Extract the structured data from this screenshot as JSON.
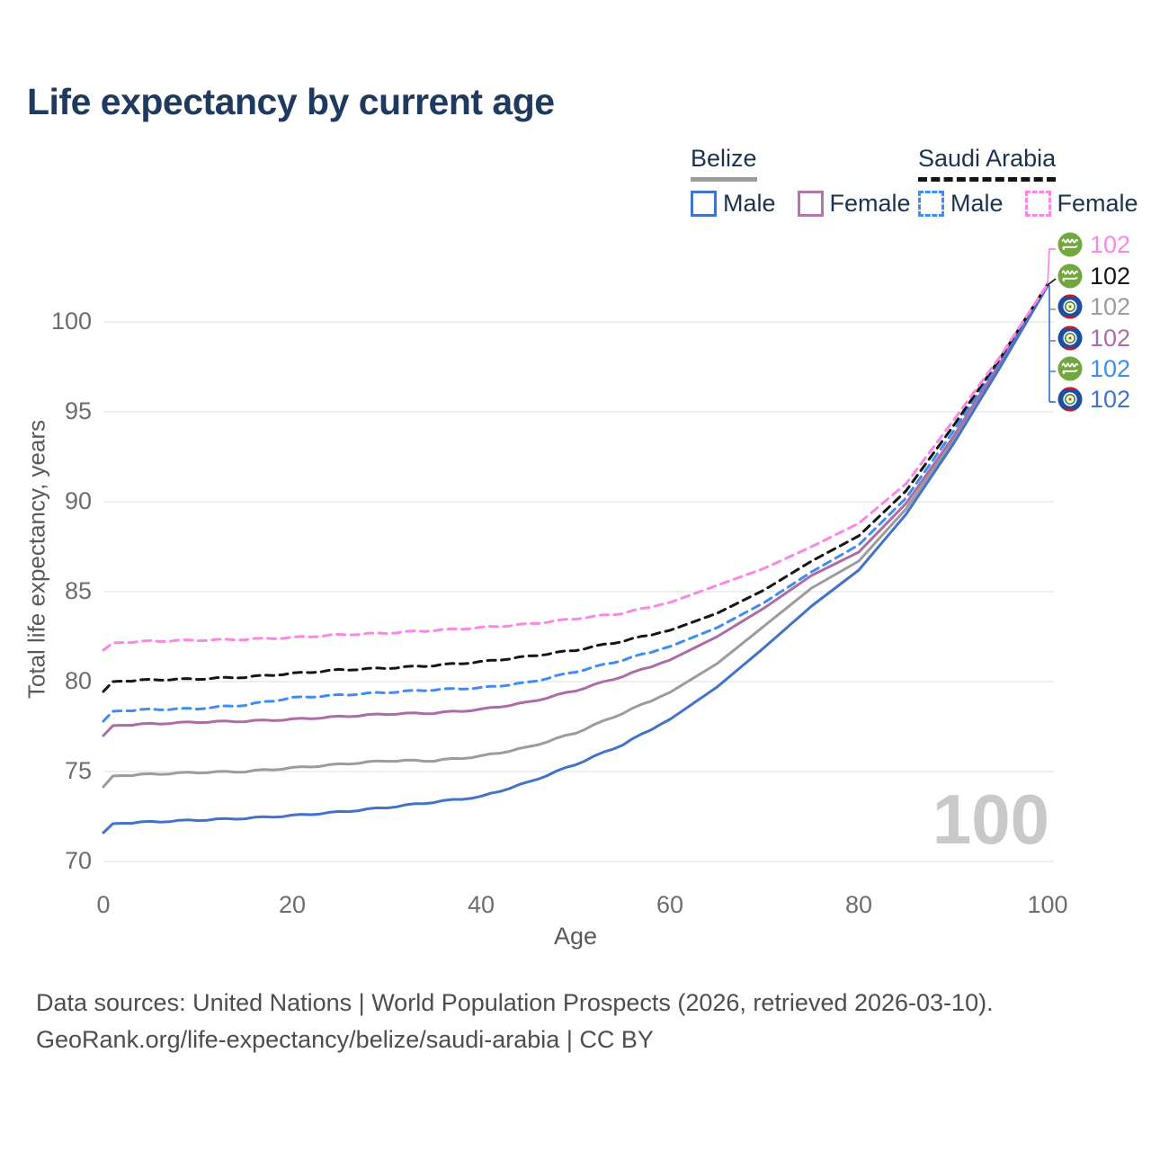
{
  "header": {
    "title": "Life expectancy by current age"
  },
  "legend": {
    "groups": [
      {
        "country": "Belize",
        "underline_style": "solid",
        "underline_color": "#9c9c9c",
        "items": [
          {
            "label": "Male",
            "color": "#4273c8",
            "dashed": false
          },
          {
            "label": "Female",
            "color": "#b474ac",
            "dashed": false
          }
        ]
      },
      {
        "country": "Saudi Arabia",
        "underline_style": "dashed",
        "underline_color": "#141414",
        "items": [
          {
            "label": "Male",
            "color": "#3f8df2",
            "dashed": true
          },
          {
            "label": "Female",
            "color": "#fb87e4",
            "dashed": true
          }
        ]
      }
    ]
  },
  "chart_data": {
    "type": "line",
    "title": "Life expectancy by current age",
    "xlabel": "Age",
    "ylabel": "Total life expectancy, years",
    "xlim": [
      0,
      100
    ],
    "ylim": [
      70,
      102.5
    ],
    "x_ticks": [
      0,
      20,
      40,
      60,
      80,
      100
    ],
    "y_ticks": [
      70,
      75,
      80,
      85,
      90,
      95,
      100
    ],
    "grid": "horizontal",
    "legend_position": "top-right",
    "series": [
      {
        "name": "Belize",
        "country": "belize",
        "sex": "all",
        "color": "#9c9c9c",
        "dashed": false,
        "points": [
          [
            0,
            74.15
          ],
          [
            1,
            74.75
          ],
          [
            5,
            74.85
          ],
          [
            10,
            74.95
          ],
          [
            15,
            75.0
          ],
          [
            20,
            75.2
          ],
          [
            25,
            75.4
          ],
          [
            30,
            75.6
          ],
          [
            35,
            75.6
          ],
          [
            40,
            75.85
          ],
          [
            45,
            76.35
          ],
          [
            50,
            77.15
          ],
          [
            55,
            78.25
          ],
          [
            60,
            79.4
          ],
          [
            65,
            81.0
          ],
          [
            70,
            83.1
          ],
          [
            75,
            85.2
          ],
          [
            80,
            86.7
          ],
          [
            85,
            89.6
          ],
          [
            90,
            93.4
          ],
          [
            95,
            97.6
          ],
          [
            100,
            102.0
          ]
        ]
      },
      {
        "name": "Belize Female",
        "country": "belize",
        "sex": "female",
        "color": "#ad6ca6",
        "dashed": false,
        "points": [
          [
            0,
            77.0
          ],
          [
            1,
            77.55
          ],
          [
            5,
            77.65
          ],
          [
            10,
            77.75
          ],
          [
            15,
            77.8
          ],
          [
            20,
            77.9
          ],
          [
            25,
            78.05
          ],
          [
            30,
            78.2
          ],
          [
            35,
            78.25
          ],
          [
            40,
            78.45
          ],
          [
            45,
            78.85
          ],
          [
            50,
            79.5
          ],
          [
            55,
            80.3
          ],
          [
            60,
            81.2
          ],
          [
            65,
            82.5
          ],
          [
            70,
            84.1
          ],
          [
            75,
            85.9
          ],
          [
            80,
            87.2
          ],
          [
            85,
            89.9
          ],
          [
            90,
            93.6
          ],
          [
            95,
            97.75
          ],
          [
            100,
            102.05
          ]
        ]
      },
      {
        "name": "Belize Male",
        "country": "belize",
        "sex": "male",
        "color": "#4273c8",
        "dashed": false,
        "points": [
          [
            0,
            71.6
          ],
          [
            1,
            72.1
          ],
          [
            5,
            72.2
          ],
          [
            10,
            72.3
          ],
          [
            15,
            72.4
          ],
          [
            20,
            72.55
          ],
          [
            25,
            72.75
          ],
          [
            30,
            73.0
          ],
          [
            35,
            73.3
          ],
          [
            40,
            73.6
          ],
          [
            45,
            74.4
          ],
          [
            50,
            75.4
          ],
          [
            55,
            76.5
          ],
          [
            60,
            77.9
          ],
          [
            65,
            79.7
          ],
          [
            70,
            81.9
          ],
          [
            75,
            84.2
          ],
          [
            80,
            86.2
          ],
          [
            85,
            89.3
          ],
          [
            90,
            93.2
          ],
          [
            95,
            97.5
          ],
          [
            100,
            102.0
          ]
        ]
      },
      {
        "name": "Saudi Arabia Male",
        "country": "saudi-arabia",
        "sex": "male",
        "color": "#3f8df2",
        "dashed": true,
        "points": [
          [
            0,
            77.8
          ],
          [
            1,
            78.35
          ],
          [
            5,
            78.45
          ],
          [
            10,
            78.5
          ],
          [
            15,
            78.7
          ],
          [
            20,
            79.1
          ],
          [
            25,
            79.25
          ],
          [
            30,
            79.4
          ],
          [
            35,
            79.55
          ],
          [
            40,
            79.65
          ],
          [
            45,
            79.95
          ],
          [
            50,
            80.55
          ],
          [
            55,
            81.2
          ],
          [
            60,
            81.95
          ],
          [
            65,
            83.0
          ],
          [
            70,
            84.4
          ],
          [
            75,
            86.1
          ],
          [
            80,
            87.6
          ],
          [
            85,
            90.2
          ],
          [
            90,
            93.9
          ],
          [
            95,
            97.9
          ],
          [
            100,
            102.05
          ]
        ]
      },
      {
        "name": "Saudi Arabia",
        "country": "saudi-arabia",
        "sex": "all",
        "color": "#161616",
        "dashed": true,
        "points": [
          [
            0,
            79.45
          ],
          [
            1,
            80.0
          ],
          [
            5,
            80.1
          ],
          [
            10,
            80.15
          ],
          [
            15,
            80.25
          ],
          [
            20,
            80.45
          ],
          [
            25,
            80.65
          ],
          [
            30,
            80.75
          ],
          [
            35,
            80.9
          ],
          [
            40,
            81.1
          ],
          [
            45,
            81.4
          ],
          [
            50,
            81.75
          ],
          [
            55,
            82.25
          ],
          [
            60,
            82.85
          ],
          [
            65,
            83.8
          ],
          [
            70,
            85.1
          ],
          [
            75,
            86.7
          ],
          [
            80,
            88.1
          ],
          [
            85,
            90.6
          ],
          [
            90,
            94.2
          ],
          [
            95,
            98.0
          ],
          [
            100,
            102.1
          ]
        ]
      },
      {
        "name": "Saudi Arabia Female",
        "country": "saudi-arabia",
        "sex": "female",
        "color": "#fb87e4",
        "dashed": true,
        "points": [
          [
            0,
            81.75
          ],
          [
            1,
            82.15
          ],
          [
            5,
            82.25
          ],
          [
            10,
            82.3
          ],
          [
            15,
            82.35
          ],
          [
            20,
            82.45
          ],
          [
            25,
            82.6
          ],
          [
            30,
            82.7
          ],
          [
            35,
            82.85
          ],
          [
            40,
            83.0
          ],
          [
            45,
            83.2
          ],
          [
            50,
            83.5
          ],
          [
            55,
            83.8
          ],
          [
            60,
            84.4
          ],
          [
            65,
            85.35
          ],
          [
            70,
            86.3
          ],
          [
            75,
            87.5
          ],
          [
            80,
            88.8
          ],
          [
            85,
            91.0
          ],
          [
            90,
            94.5
          ],
          [
            95,
            98.1
          ],
          [
            100,
            102.1
          ]
        ]
      }
    ],
    "end_labels": [
      {
        "series": "Saudi Arabia Female",
        "flag": "saudi-arabia",
        "value": "102",
        "color": "#fb87e4"
      },
      {
        "series": "Saudi Arabia",
        "flag": "saudi-arabia",
        "value": "102",
        "color": "#161616"
      },
      {
        "series": "Belize",
        "flag": "belize",
        "value": "102",
        "color": "#9c9c9c"
      },
      {
        "series": "Belize Female",
        "flag": "belize",
        "value": "102",
        "color": "#ad6ca6"
      },
      {
        "series": "Saudi Arabia Male",
        "flag": "saudi-arabia",
        "value": "102",
        "color": "#3f8df2"
      },
      {
        "series": "Belize Male",
        "flag": "belize",
        "value": "102",
        "color": "#4273c8"
      }
    ]
  },
  "watermark": {
    "value": "100"
  },
  "footer": {
    "line1": "Data sources: United Nations | World Population Prospects (2026, retrieved 2026-03-10).",
    "line2": "GeoRank.org/life-expectancy/belize/saudi-arabia | CC BY"
  }
}
